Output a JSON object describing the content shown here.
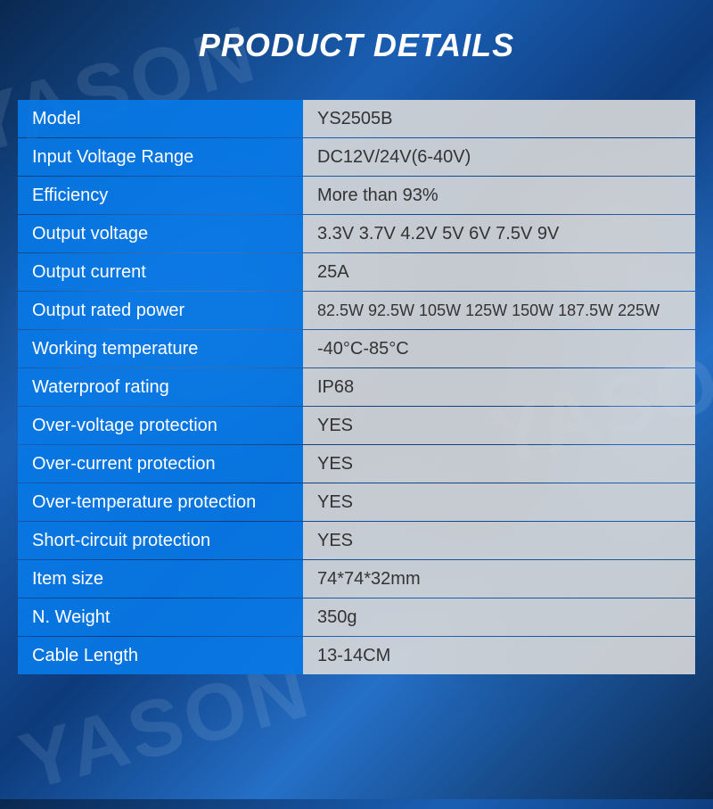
{
  "header": {
    "title": "PRODUCT DETAILS"
  },
  "watermark_text": "YASON",
  "colors": {
    "label_bg": "#0878e6",
    "value_bg": "#d9d9d9",
    "label_text": "#ffffff",
    "value_text": "#333333",
    "header_text": "#ffffff"
  },
  "specs": [
    {
      "label": "Model",
      "value": "YS2505B"
    },
    {
      "label": "Input Voltage Range",
      "value": "DC12V/24V(6-40V)"
    },
    {
      "label": "Efficiency",
      "value": "More than 93%"
    },
    {
      "label": "Output voltage",
      "value": "3.3V 3.7V 4.2V 5V 6V 7.5V 9V"
    },
    {
      "label": "Output current",
      "value": "25A"
    },
    {
      "label": "Output rated power",
      "value": "82.5W 92.5W 105W 125W 150W 187.5W 225W",
      "small": true
    },
    {
      "label": "Working temperature",
      "value": "-40°C-85°C"
    },
    {
      "label": "Waterproof rating",
      "value": "IP68"
    },
    {
      "label": "Over-voltage protection",
      "value": "YES"
    },
    {
      "label": "Over-current protection",
      "value": "YES"
    },
    {
      "label": "Over-temperature protection",
      "value": "YES"
    },
    {
      "label": "Short-circuit protection",
      "value": "YES"
    },
    {
      "label": "Item size",
      "value": "74*74*32mm"
    },
    {
      "label": "N. Weight",
      "value": "350g"
    },
    {
      "label": "Cable Length",
      "value": "13-14CM"
    }
  ]
}
